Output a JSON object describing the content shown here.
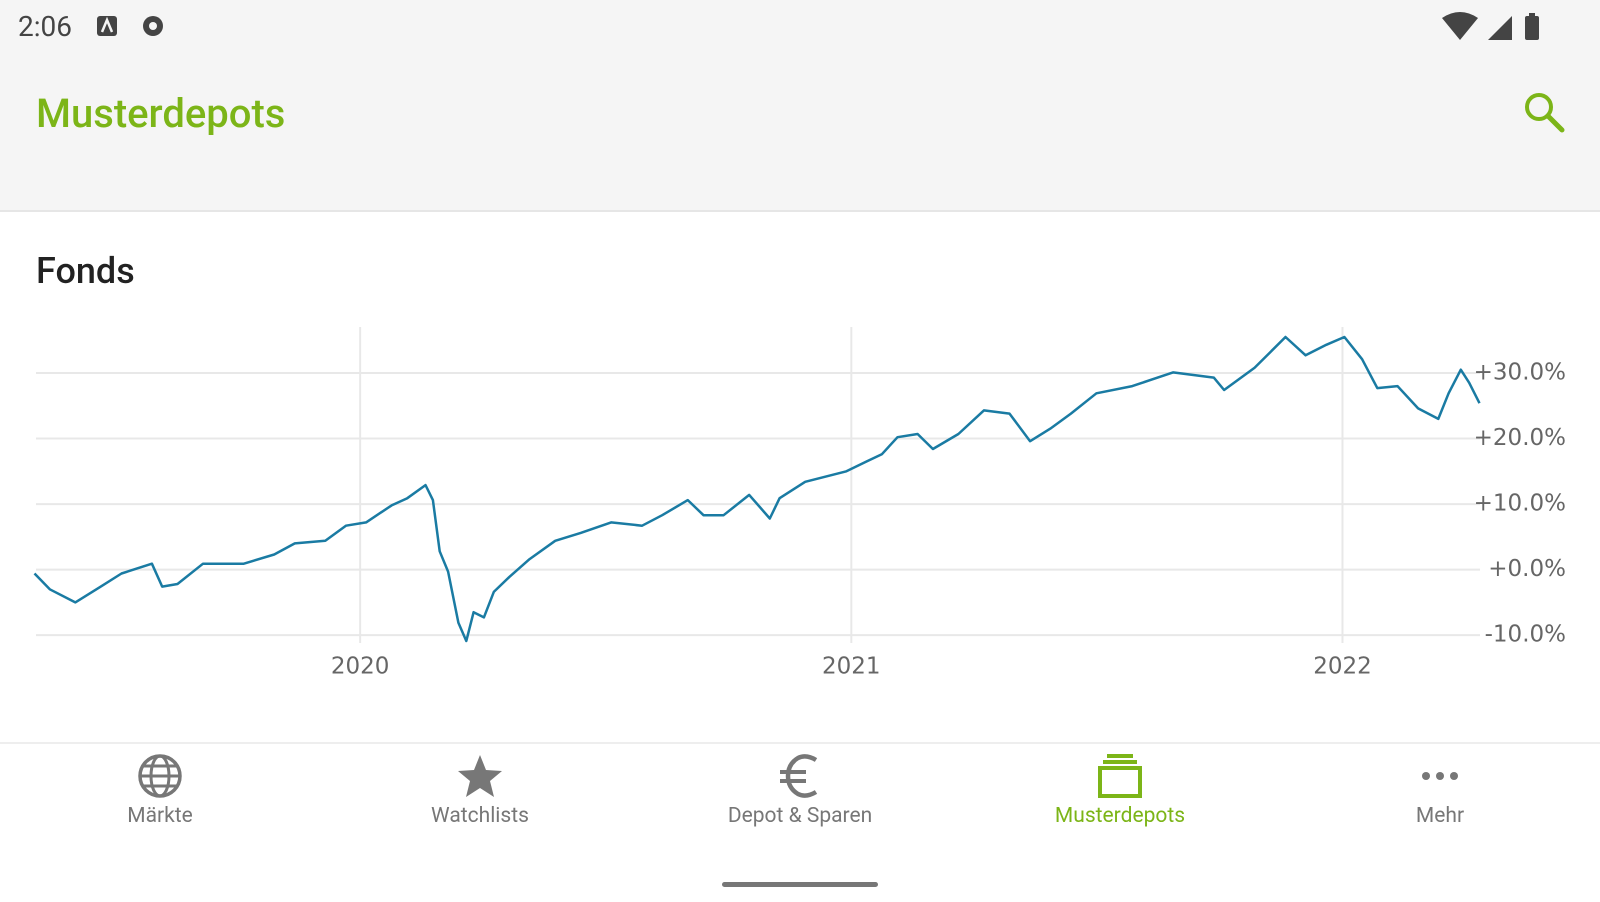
{
  "status_bar": {
    "time": "2:06"
  },
  "header": {
    "title": "Musterdepots"
  },
  "section": {
    "title": "Fonds"
  },
  "chart_data": {
    "type": "line",
    "color": "#1a7ba3",
    "grid": true,
    "x": [
      2019.337,
      2019.368,
      2019.42,
      2019.472,
      2019.514,
      2019.576,
      2019.597,
      2019.628,
      2019.68,
      2019.763,
      2019.825,
      2019.867,
      2019.929,
      2019.971,
      2020.012,
      2020.064,
      2020.096,
      2020.133,
      2020.148,
      2020.162,
      2020.179,
      2020.2,
      2020.216,
      2020.231,
      2020.252,
      2020.272,
      2020.304,
      2020.345,
      2020.397,
      2020.449,
      2020.511,
      2020.574,
      2020.615,
      2020.667,
      2020.699,
      2020.74,
      2020.792,
      2020.834,
      2020.854,
      2020.906,
      2020.99,
      2021.031,
      2021.062,
      2021.094,
      2021.135,
      2021.166,
      2021.218,
      2021.27,
      2021.322,
      2021.364,
      2021.405,
      2021.447,
      2021.499,
      2021.572,
      2021.655,
      2021.738,
      2021.759,
      2021.821,
      2021.884,
      2021.925,
      2021.967,
      2022.004,
      2022.04,
      2022.071,
      2022.112,
      2022.154,
      2022.195,
      2022.216,
      2022.241,
      2022.258,
      2022.279
    ],
    "values": [
      -0.6,
      -3.0,
      -5.0,
      -2.6,
      -0.6,
      0.9,
      -2.6,
      -2.2,
      0.9,
      0.9,
      2.3,
      4.0,
      4.4,
      6.7,
      7.2,
      9.8,
      10.9,
      12.9,
      10.6,
      2.8,
      -0.3,
      -8.1,
      -10.9,
      -6.5,
      -7.3,
      -3.4,
      -1.1,
      1.6,
      4.4,
      5.6,
      7.2,
      6.7,
      8.3,
      10.6,
      8.3,
      8.3,
      11.4,
      7.8,
      10.9,
      13.4,
      15.0,
      16.5,
      17.6,
      20.2,
      20.7,
      18.4,
      20.7,
      24.3,
      23.8,
      19.6,
      21.5,
      23.8,
      26.9,
      28.0,
      30.1,
      29.3,
      27.4,
      30.8,
      35.5,
      32.7,
      34.3,
      35.5,
      32.1,
      27.7,
      28.0,
      24.6,
      23.0,
      26.9,
      30.5,
      28.5,
      25.4
    ],
    "xlim": [
      2019.34,
      2022.28
    ],
    "xticks": [
      2020,
      2021,
      2022
    ],
    "ylim": [
      -11.2,
      35.8
    ],
    "yticks": [
      {
        "value": -10,
        "label": "-10.0%"
      },
      {
        "value": 0,
        "label": "+0.0%"
      },
      {
        "value": 10,
        "label": "+10.0%"
      },
      {
        "value": 20,
        "label": "+20.0%"
      },
      {
        "value": 30,
        "label": "+30.0%"
      }
    ]
  },
  "nav": {
    "items": [
      "Märkte",
      "Watchlists",
      "Depot & Sparen",
      "Musterdepots",
      "Mehr"
    ]
  }
}
